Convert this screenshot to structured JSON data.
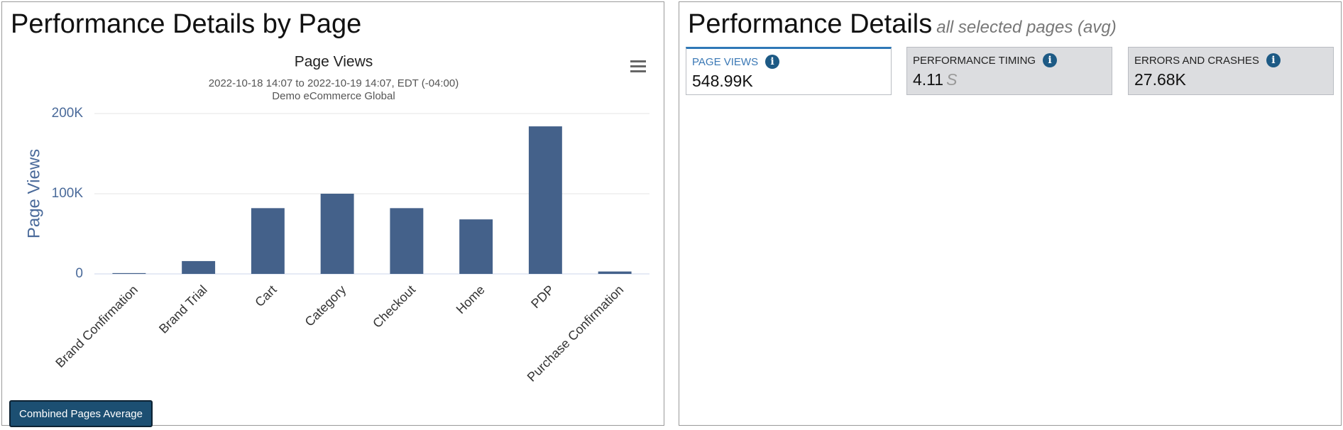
{
  "left_panel": {
    "title": "Performance Details by Page",
    "button": "Combined Pages Average"
  },
  "chart_data": {
    "type": "bar",
    "title": "Page Views",
    "subtitle": [
      "2022-10-18 14:07 to 2022-10-19 14:07, EDT (-04:00)",
      "Demo eCommerce Global"
    ],
    "y_label": "Page Views",
    "categories": [
      "Brand Confirmation",
      "Brand Trial",
      "Cart",
      "Category",
      "Checkout",
      "Home",
      "PDP",
      "Purchase Confirmation"
    ],
    "values": [
      1000,
      16000,
      82000,
      100000,
      82000,
      68000,
      184000,
      3000
    ],
    "color": "#44618a",
    "ylim": [
      0,
      200000
    ],
    "yticks": [
      0,
      {
        "value": 100000,
        "label": "100K"
      },
      {
        "value": 200000,
        "label": "200K"
      }
    ],
    "grid": true
  },
  "right_panel": {
    "title": "Performance Details",
    "subtitle": "all selected pages (avg)",
    "cards": [
      {
        "label": "PAGE VIEWS",
        "value": "548.99K"
      },
      {
        "label": "PERFORMANCE TIMING",
        "value": "4.11",
        "unit": "S"
      },
      {
        "label": "ERRORS AND CRASHES",
        "value": "27.68K"
      }
    ]
  }
}
